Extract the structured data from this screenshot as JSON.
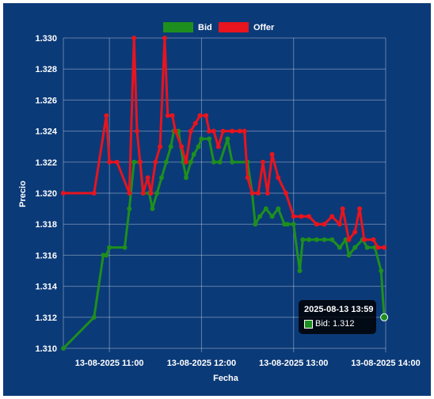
{
  "chart_data": {
    "type": "line",
    "title": "",
    "xlabel": "Fecha",
    "ylabel": "Precio",
    "x_range": [
      "2025-08-13 10:30",
      "2025-08-13 14:00"
    ],
    "ylim": [
      1.31,
      1.33
    ],
    "y_ticks": [
      "1.310",
      "1.312",
      "1.314",
      "1.316",
      "1.318",
      "1.320",
      "1.322",
      "1.324",
      "1.326",
      "1.328",
      "1.330"
    ],
    "x_ticks": [
      "13-08-2025 11:00",
      "13-08-2025 12:00",
      "13-08-2025 13:00",
      "13-08-2025 14:00"
    ],
    "grid": true,
    "legend_position": "top-center",
    "series": [
      {
        "name": "Bid",
        "color": "#1e8f1e",
        "points": [
          [
            "10:30",
            1.31
          ],
          [
            "10:50",
            1.312
          ],
          [
            "10:56",
            1.316
          ],
          [
            "10:58",
            1.316
          ],
          [
            "11:00",
            1.3165
          ],
          [
            "11:10",
            1.3165
          ],
          [
            "11:13",
            1.319
          ],
          [
            "11:16",
            1.322
          ],
          [
            "11:20",
            1.322
          ],
          [
            "11:22",
            1.32
          ],
          [
            "11:26",
            1.32
          ],
          [
            "11:28",
            1.319
          ],
          [
            "11:31",
            1.32
          ],
          [
            "11:34",
            1.321
          ],
          [
            "11:37",
            1.322
          ],
          [
            "11:40",
            1.323
          ],
          [
            "11:42",
            1.324
          ],
          [
            "11:45",
            1.324
          ],
          [
            "11:48",
            1.322
          ],
          [
            "11:50",
            1.321
          ],
          [
            "11:53",
            1.322
          ],
          [
            "11:55",
            1.3225
          ],
          [
            "11:58",
            1.323
          ],
          [
            "12:00",
            1.3235
          ],
          [
            "12:05",
            1.3235
          ],
          [
            "12:08",
            1.322
          ],
          [
            "12:12",
            1.322
          ],
          [
            "12:17",
            1.3235
          ],
          [
            "12:20",
            1.322
          ],
          [
            "12:30",
            1.322
          ],
          [
            "12:33",
            1.32
          ],
          [
            "12:35",
            1.318
          ],
          [
            "12:38",
            1.3185
          ],
          [
            "12:42",
            1.319
          ],
          [
            "12:46",
            1.3185
          ],
          [
            "12:50",
            1.319
          ],
          [
            "12:54",
            1.318
          ],
          [
            "12:56",
            1.318
          ],
          [
            "13:00",
            1.318
          ],
          [
            "13:04",
            1.315
          ],
          [
            "13:06",
            1.317
          ],
          [
            "13:10",
            1.317
          ],
          [
            "13:15",
            1.317
          ],
          [
            "13:20",
            1.317
          ],
          [
            "13:25",
            1.317
          ],
          [
            "13:30",
            1.3165
          ],
          [
            "13:34",
            1.317
          ],
          [
            "13:36",
            1.316
          ],
          [
            "13:40",
            1.3165
          ],
          [
            "13:45",
            1.317
          ],
          [
            "13:48",
            1.3165
          ],
          [
            "13:53",
            1.3165
          ],
          [
            "13:57",
            1.315
          ],
          [
            "13:59",
            1.312
          ]
        ]
      },
      {
        "name": "Offer",
        "color": "#e8141e",
        "points": [
          [
            "10:30",
            1.32
          ],
          [
            "10:50",
            1.32
          ],
          [
            "10:58",
            1.325
          ],
          [
            "11:00",
            1.322
          ],
          [
            "11:05",
            1.322
          ],
          [
            "11:13",
            1.32
          ],
          [
            "11:16",
            1.33
          ],
          [
            "11:18",
            1.324
          ],
          [
            "11:20",
            1.322
          ],
          [
            "11:22",
            1.32
          ],
          [
            "11:25",
            1.321
          ],
          [
            "11:27",
            1.32
          ],
          [
            "11:30",
            1.322
          ],
          [
            "11:33",
            1.323
          ],
          [
            "11:36",
            1.33
          ],
          [
            "11:38",
            1.325
          ],
          [
            "11:41",
            1.325
          ],
          [
            "11:43",
            1.324
          ],
          [
            "11:47",
            1.323
          ],
          [
            "11:50",
            1.322
          ],
          [
            "11:53",
            1.324
          ],
          [
            "11:56",
            1.3245
          ],
          [
            "11:59",
            1.325
          ],
          [
            "12:03",
            1.325
          ],
          [
            "12:05",
            1.324
          ],
          [
            "12:08",
            1.324
          ],
          [
            "12:11",
            1.323
          ],
          [
            "12:14",
            1.324
          ],
          [
            "12:20",
            1.324
          ],
          [
            "12:25",
            1.324
          ],
          [
            "12:28",
            1.324
          ],
          [
            "12:30",
            1.321
          ],
          [
            "12:33",
            1.32
          ],
          [
            "12:37",
            1.32
          ],
          [
            "12:40",
            1.322
          ],
          [
            "12:43",
            1.32
          ],
          [
            "12:46",
            1.3225
          ],
          [
            "12:50",
            1.321
          ],
          [
            "12:55",
            1.32
          ],
          [
            "13:00",
            1.3185
          ],
          [
            "13:05",
            1.3185
          ],
          [
            "13:10",
            1.3185
          ],
          [
            "13:15",
            1.318
          ],
          [
            "13:20",
            1.318
          ],
          [
            "13:25",
            1.3185
          ],
          [
            "13:30",
            1.318
          ],
          [
            "13:32",
            1.319
          ],
          [
            "13:36",
            1.317
          ],
          [
            "13:40",
            1.3175
          ],
          [
            "13:43",
            1.319
          ],
          [
            "13:46",
            1.317
          ],
          [
            "13:52",
            1.317
          ],
          [
            "13:55",
            1.3165
          ],
          [
            "13:59",
            1.3165
          ]
        ]
      }
    ]
  },
  "tooltip": {
    "title": "2025-08-13 13:59",
    "label": "Bid: 1.312"
  }
}
